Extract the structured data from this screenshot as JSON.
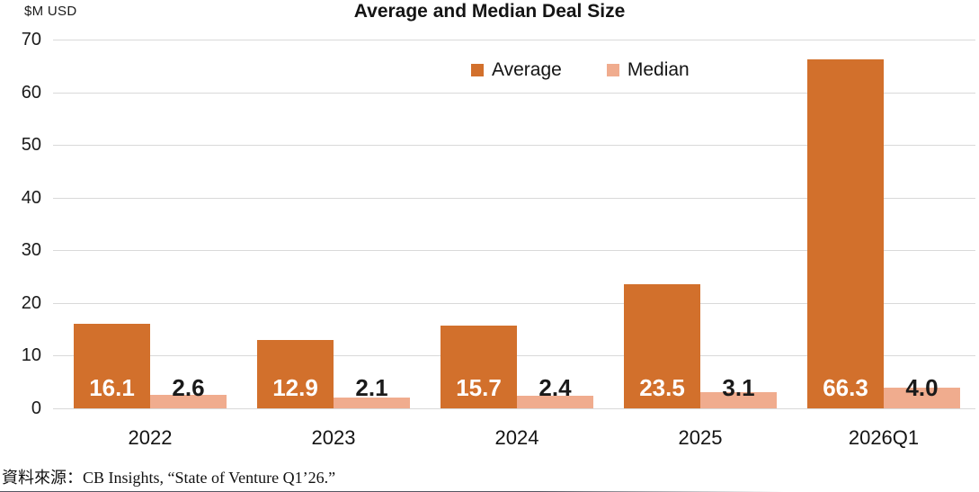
{
  "chart_data": {
    "type": "bar",
    "title": "Average and Median Deal Size",
    "units_label": "$M USD",
    "categories": [
      "2022",
      "2023",
      "2024",
      "2025",
      "2026Q1"
    ],
    "series": [
      {
        "name": "Average",
        "color": "#D2702C",
        "values": [
          16.1,
          12.9,
          15.7,
          23.5,
          66.3
        ]
      },
      {
        "name": "Median",
        "color": "#F0AC8E",
        "values": [
          2.6,
          2.1,
          2.4,
          3.1,
          4.0
        ]
      }
    ],
    "ylabel": "",
    "xlabel": "",
    "ylim": [
      0,
      70
    ],
    "ytick_step": 10,
    "grid": true,
    "legend_position": "top-center",
    "gridline_color": "#D9D9D9",
    "value_label_colors": {
      "average": "#FFFFFF",
      "median": "#1A1A1A"
    }
  },
  "source_note": "資料來源：CB Insights, “State of Venture Q1’26.”"
}
